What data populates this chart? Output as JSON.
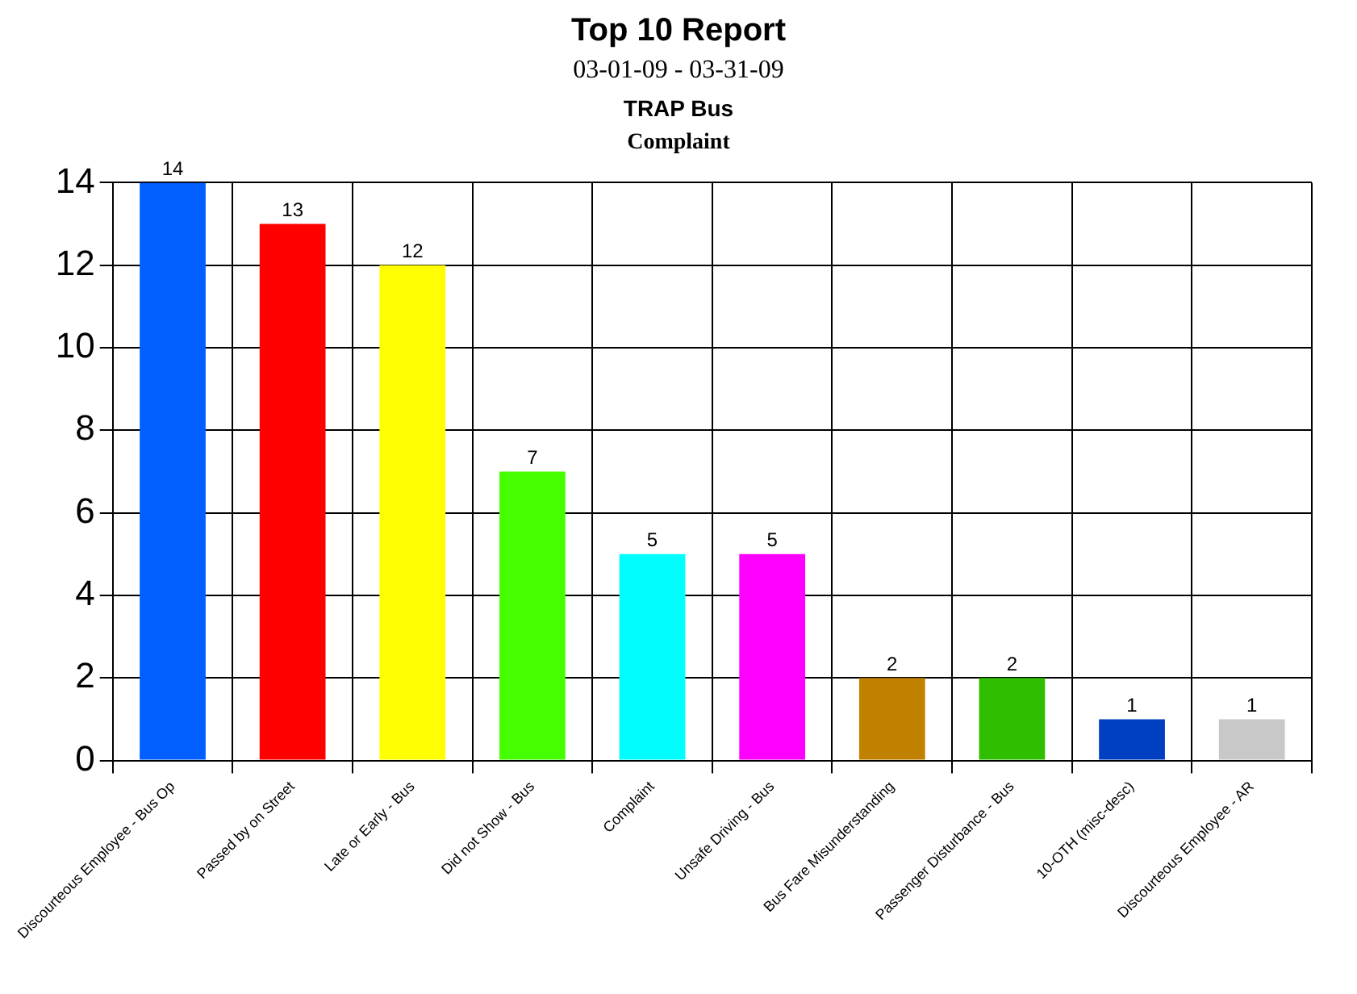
{
  "chart_data": {
    "type": "bar",
    "title": "Top 10 Report",
    "subtitle": "03-01-09 - 03-31-09",
    "annotations": [
      "TRAP Bus",
      "Complaint"
    ],
    "categories": [
      "Discourteous Employee - Bus Op",
      "Passed by on Street",
      "Late or Early - Bus",
      "Did not Show - Bus",
      "Complaint",
      "Unsafe Driving - Bus",
      "Bus Fare Misunderstanding",
      "Passenger Disturbance - Bus",
      "10-OTH (misc-desc)",
      "Discourteous Employee - AR"
    ],
    "values": [
      14,
      13,
      12,
      7,
      5,
      5,
      2,
      2,
      1,
      1
    ],
    "colors": [
      "#005ffe",
      "#fe0000",
      "#fefe00",
      "#45fe00",
      "#00fefe",
      "#fe00fe",
      "#c08000",
      "#2fbf00",
      "#0040c0",
      "#c8c8c8"
    ],
    "ylim": [
      0,
      14
    ],
    "yticks": [
      0,
      2,
      4,
      6,
      8,
      10,
      12,
      14
    ],
    "grid": true,
    "data_labels": true,
    "legend": false
  }
}
